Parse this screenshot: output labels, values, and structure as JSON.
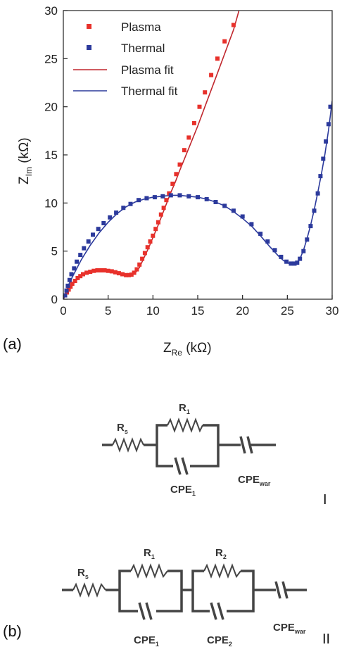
{
  "chart_data": {
    "type": "scatter",
    "xlabel": "Z",
    "xlabel_sub": "Re",
    "xlabel_unit": " (kΩ)",
    "ylabel": "Z",
    "ylabel_sub": "Im",
    "ylabel_unit": " (kΩ)",
    "xlim": [
      0,
      30
    ],
    "ylim": [
      0,
      30
    ],
    "xticks": [
      0,
      5,
      10,
      15,
      20,
      25,
      30
    ],
    "yticks": [
      0,
      5,
      10,
      15,
      20,
      25,
      30
    ],
    "legend_position": "top-left",
    "grid": false,
    "series": [
      {
        "name": "Plasma",
        "kind": "points",
        "color": "#e8312b",
        "x": [
          0.2,
          0.4,
          0.6,
          0.8,
          1.0,
          1.3,
          1.6,
          1.9,
          2.2,
          2.6,
          3.0,
          3.4,
          3.8,
          4.2,
          4.6,
          5.0,
          5.4,
          5.8,
          6.2,
          6.6,
          7.0,
          7.3,
          7.6,
          7.9,
          8.2,
          8.5,
          8.8,
          9.1,
          9.4,
          9.7,
          10.0,
          10.3,
          10.6,
          10.9,
          11.2,
          11.5,
          11.8,
          12.2,
          12.6,
          13.0,
          13.5,
          14.0,
          14.6,
          15.2,
          15.8,
          16.5,
          17.2,
          18.0,
          19.0
        ],
        "y": [
          0.4,
          0.7,
          1.0,
          1.3,
          1.6,
          1.9,
          2.2,
          2.4,
          2.6,
          2.75,
          2.85,
          2.95,
          3.0,
          3.0,
          3.0,
          2.95,
          2.9,
          2.8,
          2.7,
          2.6,
          2.5,
          2.5,
          2.55,
          2.75,
          3.1,
          3.6,
          4.2,
          4.8,
          5.4,
          6.0,
          6.6,
          7.3,
          8.0,
          8.8,
          9.5,
          10.3,
          11.0,
          12.0,
          13.0,
          14.0,
          15.5,
          16.8,
          18.3,
          20.0,
          21.5,
          23.3,
          25.0,
          26.8,
          28.5
        ]
      },
      {
        "name": "Thermal",
        "kind": "points",
        "color": "#2c3a9c",
        "x": [
          0.2,
          0.35,
          0.5,
          0.7,
          0.9,
          1.2,
          1.5,
          1.9,
          2.3,
          2.8,
          3.3,
          3.9,
          4.5,
          5.2,
          5.9,
          6.7,
          7.5,
          8.4,
          9.3,
          10.2,
          11.1,
          12.0,
          13.0,
          14.0,
          15.0,
          16.0,
          17.0,
          18.0,
          19.0,
          20.0,
          21.0,
          22.0,
          22.8,
          23.6,
          24.3,
          24.9,
          25.4,
          25.8,
          26.1,
          26.4,
          26.8,
          27.2,
          27.6,
          28.0,
          28.4,
          28.7,
          29.0,
          29.3,
          29.6,
          29.8
        ],
        "y": [
          0.4,
          0.9,
          1.4,
          2.0,
          2.6,
          3.2,
          3.9,
          4.6,
          5.3,
          6.0,
          6.7,
          7.3,
          7.9,
          8.5,
          9.0,
          9.5,
          9.9,
          10.3,
          10.5,
          10.6,
          10.7,
          10.8,
          10.8,
          10.7,
          10.6,
          10.4,
          10.1,
          9.7,
          9.2,
          8.6,
          7.8,
          6.8,
          6.0,
          5.1,
          4.4,
          3.9,
          3.7,
          3.7,
          3.8,
          4.2,
          5.0,
          6.2,
          7.6,
          9.2,
          11.0,
          12.8,
          14.6,
          16.4,
          18.2,
          20.0
        ]
      },
      {
        "name": "Plasma fit",
        "kind": "line",
        "color": "#c0272d",
        "x": [
          0,
          0.5,
          1,
          1.5,
          2,
          2.5,
          3,
          3.5,
          4,
          4.5,
          5,
          5.5,
          6,
          6.5,
          7,
          7.5,
          8,
          8.5,
          9,
          9.5,
          10,
          10.5,
          11,
          11.5,
          12,
          12.5,
          13,
          14,
          15,
          16,
          17,
          18,
          19,
          19.6
        ],
        "y": [
          0,
          0.85,
          1.5,
          2.0,
          2.4,
          2.7,
          2.85,
          2.95,
          3.0,
          3.0,
          2.95,
          2.88,
          2.78,
          2.65,
          2.55,
          2.5,
          2.7,
          3.3,
          4.3,
          5.3,
          6.4,
          7.5,
          8.7,
          9.9,
          11.1,
          12.2,
          13.4,
          15.7,
          18.0,
          20.5,
          23.0,
          25.5,
          28.0,
          30.0
        ]
      },
      {
        "name": "Thermal fit",
        "kind": "line",
        "color": "#2c3a9c",
        "x": [
          0,
          0.3,
          0.6,
          1,
          1.5,
          2,
          3,
          4,
          5,
          6,
          7,
          8,
          9,
          10,
          11,
          12,
          13,
          14,
          15,
          16,
          17,
          18,
          19,
          20,
          21,
          22,
          23,
          24,
          24.6,
          25.2,
          25.6,
          26.0,
          26.4,
          26.8,
          27.2,
          27.6,
          28.0,
          28.4,
          28.8,
          29.2,
          29.6,
          30.0
        ],
        "y": [
          0,
          0.8,
          1.5,
          2.3,
          3.2,
          4.1,
          5.6,
          6.9,
          8.0,
          8.9,
          9.6,
          10.1,
          10.4,
          10.6,
          10.7,
          10.8,
          10.8,
          10.7,
          10.6,
          10.4,
          10.1,
          9.7,
          9.1,
          8.4,
          7.6,
          6.6,
          5.5,
          4.5,
          4.0,
          3.7,
          3.65,
          3.75,
          4.2,
          5.1,
          6.3,
          7.7,
          9.3,
          11.1,
          13.0,
          15.1,
          17.6,
          20.6
        ]
      }
    ]
  },
  "figure": {
    "label_a": "(a)",
    "label_b": "(b)"
  },
  "circuits": {
    "circuit_1": {
      "rs": "R",
      "rs_sub": "s",
      "r1": "R",
      "r1_sub": "1",
      "cpe1": "CPE",
      "cpe1_sub": "1",
      "cpew": "CPE",
      "cpew_sub": "war",
      "numeral": "I"
    },
    "circuit_2": {
      "rs": "R",
      "rs_sub": "s",
      "r1": "R",
      "r1_sub": "1",
      "r2": "R",
      "r2_sub": "2",
      "cpe1": "CPE",
      "cpe1_sub": "1",
      "cpe2": "CPE",
      "cpe2_sub": "2",
      "cpew": "CPE",
      "cpew_sub": "war",
      "numeral": "II"
    }
  }
}
